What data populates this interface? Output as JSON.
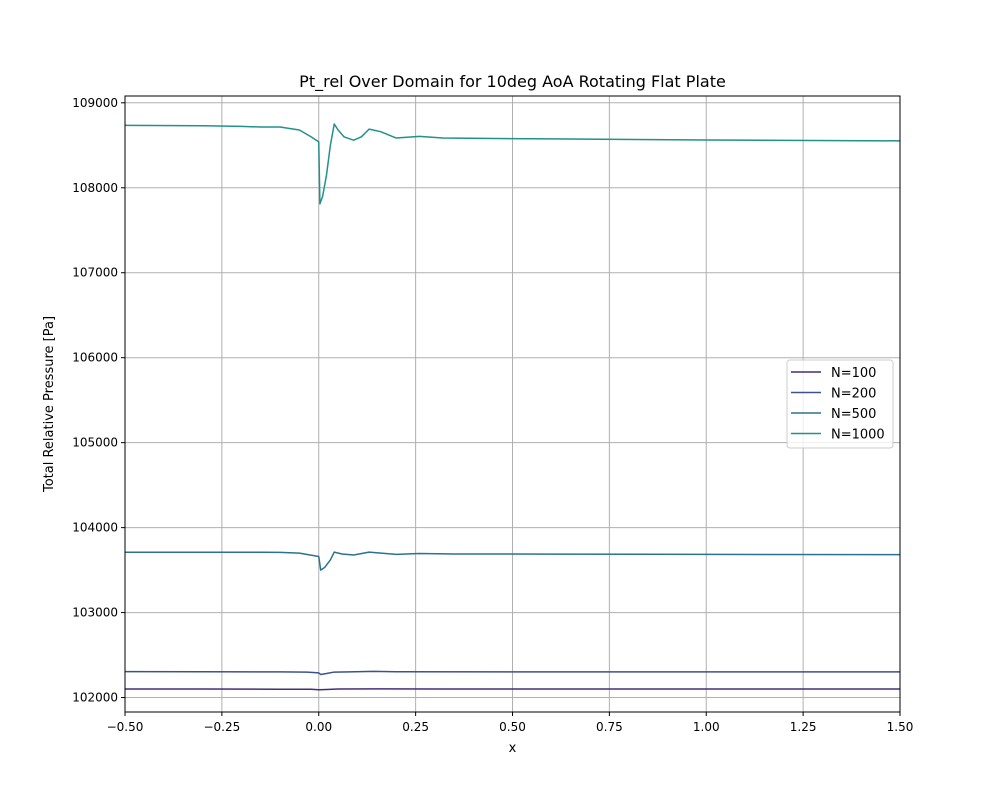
{
  "chart_data": {
    "type": "line",
    "title": "Pt_rel Over Domain for 10deg AoA Rotating Flat Plate",
    "xlabel": "x",
    "ylabel": "Total Relative Pressure [Pa]",
    "xlim": [
      -0.5,
      1.5
    ],
    "ylim": [
      101830,
      109080
    ],
    "xticks": [
      -0.5,
      -0.25,
      0.0,
      0.25,
      0.5,
      0.75,
      1.0,
      1.25,
      1.5
    ],
    "xtick_labels": [
      "−0.50",
      "−0.25",
      "0.00",
      "0.25",
      "0.50",
      "0.75",
      "1.00",
      "1.25",
      "1.50"
    ],
    "yticks": [
      102000,
      103000,
      104000,
      105000,
      106000,
      107000,
      108000,
      109000
    ],
    "ytick_labels": [
      "102000",
      "103000",
      "104000",
      "105000",
      "106000",
      "107000",
      "108000",
      "109000"
    ],
    "grid": true,
    "legend_position": "center-right",
    "series": [
      {
        "name": "N=100",
        "color": "#472c7a",
        "points": [
          [
            -0.5,
            102100
          ],
          [
            -0.3,
            102100
          ],
          [
            -0.1,
            102098
          ],
          [
            -0.02,
            102098
          ],
          [
            0.0,
            102092
          ],
          [
            0.02,
            102095
          ],
          [
            0.05,
            102100
          ],
          [
            0.15,
            102102
          ],
          [
            0.3,
            102101
          ],
          [
            0.6,
            102100
          ],
          [
            1.0,
            102100
          ],
          [
            1.5,
            102100
          ]
        ]
      },
      {
        "name": "N=200",
        "color": "#3b528b",
        "points": [
          [
            -0.5,
            102305
          ],
          [
            -0.3,
            102303
          ],
          [
            -0.1,
            102302
          ],
          [
            -0.03,
            102300
          ],
          [
            0.0,
            102290
          ],
          [
            0.005,
            102272
          ],
          [
            0.02,
            102283
          ],
          [
            0.04,
            102300
          ],
          [
            0.08,
            102302
          ],
          [
            0.14,
            102308
          ],
          [
            0.2,
            102303
          ],
          [
            0.5,
            102302
          ],
          [
            1.0,
            102302
          ],
          [
            1.5,
            102302
          ]
        ]
      },
      {
        "name": "N=500",
        "color": "#2c728e",
        "points": [
          [
            -0.5,
            103710
          ],
          [
            -0.3,
            103710
          ],
          [
            -0.15,
            103710
          ],
          [
            -0.1,
            103708
          ],
          [
            -0.05,
            103700
          ],
          [
            0.0,
            103660
          ],
          [
            0.005,
            103500
          ],
          [
            0.015,
            103530
          ],
          [
            0.03,
            103620
          ],
          [
            0.04,
            103712
          ],
          [
            0.06,
            103690
          ],
          [
            0.09,
            103678
          ],
          [
            0.13,
            103712
          ],
          [
            0.16,
            103700
          ],
          [
            0.2,
            103685
          ],
          [
            0.26,
            103695
          ],
          [
            0.35,
            103690
          ],
          [
            0.6,
            103688
          ],
          [
            1.0,
            103685
          ],
          [
            1.5,
            103682
          ]
        ]
      },
      {
        "name": "N=1000",
        "color": "#21918c",
        "points": [
          [
            -0.5,
            108735
          ],
          [
            -0.3,
            108730
          ],
          [
            -0.2,
            108722
          ],
          [
            -0.15,
            108715
          ],
          [
            -0.1,
            108715
          ],
          [
            -0.05,
            108680
          ],
          [
            -0.02,
            108600
          ],
          [
            0.0,
            108540
          ],
          [
            0.003,
            107810
          ],
          [
            0.01,
            107900
          ],
          [
            0.02,
            108150
          ],
          [
            0.03,
            108500
          ],
          [
            0.04,
            108750
          ],
          [
            0.05,
            108680
          ],
          [
            0.065,
            108600
          ],
          [
            0.09,
            108560
          ],
          [
            0.11,
            108600
          ],
          [
            0.13,
            108690
          ],
          [
            0.16,
            108660
          ],
          [
            0.2,
            108585
          ],
          [
            0.26,
            108605
          ],
          [
            0.32,
            108585
          ],
          [
            0.6,
            108575
          ],
          [
            1.0,
            108562
          ],
          [
            1.5,
            108552
          ]
        ]
      }
    ]
  }
}
